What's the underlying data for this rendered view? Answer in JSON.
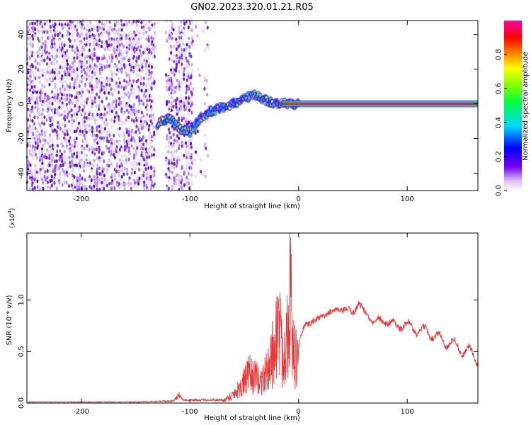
{
  "title": "GN02.2023.320.01.21.R05",
  "chart_data": [
    {
      "type": "heatmap",
      "xlabel": "Height of straight line (km)",
      "ylabel": "Frequency (Hz)",
      "xlim": [
        -250,
        165
      ],
      "ylim": [
        -50,
        48
      ],
      "x_ticks": [
        -200,
        -100,
        0,
        100
      ],
      "x_tick_labels": [
        "-200",
        "-100",
        "0",
        "100"
      ],
      "y_ticks": [
        -40,
        -20,
        0,
        20,
        40
      ],
      "y_tick_labels": [
        "-40",
        "-20",
        "0",
        "20",
        "40"
      ],
      "colorbar": {
        "label": "Normalized spectral amplitude",
        "range": [
          0,
          1
        ],
        "ticks": [
          0.0,
          0.2,
          0.4,
          0.6,
          0.8
        ],
        "tick_labels": [
          "0.0",
          "0.2",
          "0.4",
          "0.6",
          "0.8"
        ],
        "colormap": "rainbow (white → violet → blue → cyan → green → yellow → red → magenta)"
      },
      "features": [
        {
          "x_range": [
            -250,
            -132
          ],
          "freq_range": [
            -50,
            48
          ],
          "amplitude": 0.1,
          "pattern": "scattered noise"
        },
        {
          "x_range": [
            -122,
            -98
          ],
          "freq_range": [
            -50,
            48
          ],
          "amplitude": 0.1,
          "pattern": "scattered noise"
        },
        {
          "x_range": [
            -98,
            -83
          ],
          "freq_range": [
            -50,
            48
          ],
          "amplitude": 0.05,
          "pattern": "sparse noise"
        },
        {
          "signal_track": [
            [
              -130,
              -12
            ],
            [
              -120,
              -8
            ],
            [
              -110,
              -14
            ],
            [
              -100,
              -16
            ],
            [
              -90,
              -8
            ],
            [
              -80,
              -4
            ],
            [
              -70,
              -2
            ],
            [
              -60,
              0
            ],
            [
              -50,
              3
            ],
            [
              -40,
              5
            ],
            [
              -30,
              2
            ],
            [
              -20,
              0
            ],
            [
              0,
              0
            ],
            [
              165,
              0
            ]
          ]
        },
        {
          "x_range": [
            0,
            165
          ],
          "freq": 0,
          "amplitude": 1.0,
          "pattern": "strong carrier line"
        }
      ],
      "grid": false
    },
    {
      "type": "line",
      "xlabel": "Height of straight line (km)",
      "ylabel": "SNR (10 * v/v)",
      "y_multiplier_label": "(x10",
      "y_multiplier_exp": "4",
      "y_multiplier_close": ")",
      "xlim": [
        -250,
        165
      ],
      "ylim": [
        0,
        1.65
      ],
      "x_ticks": [
        -200,
        -100,
        0,
        100
      ],
      "x_tick_labels": [
        "-200",
        "-100",
        "0",
        "100"
      ],
      "y_ticks": [
        0,
        0.5,
        1.0
      ],
      "y_tick_labels": [
        "0.0",
        "0.5",
        "1.0"
      ],
      "color": "#ee3333",
      "series_envelope": [
        [
          -250,
          0.01
        ],
        [
          -150,
          0.01
        ],
        [
          -115,
          0.02
        ],
        [
          -110,
          0.08
        ],
        [
          -105,
          0.03
        ],
        [
          -70,
          0.03
        ],
        [
          -62,
          0.1
        ],
        [
          -55,
          0.2
        ],
        [
          -45,
          0.4
        ],
        [
          -35,
          0.3
        ],
        [
          -28,
          0.45
        ],
        [
          -22,
          0.8
        ],
        [
          -18,
          1.15
        ],
        [
          -15,
          0.6
        ],
        [
          -10,
          1.1
        ],
        [
          -8,
          1.62
        ],
        [
          -5,
          0.7
        ],
        [
          0,
          0.55
        ],
        [
          5,
          0.75
        ],
        [
          15,
          0.8
        ],
        [
          25,
          0.86
        ],
        [
          35,
          0.91
        ],
        [
          45,
          0.9
        ],
        [
          50,
          0.88
        ],
        [
          55,
          0.98
        ],
        [
          60,
          0.88
        ],
        [
          70,
          0.8
        ],
        [
          80,
          0.8
        ],
        [
          90,
          0.75
        ],
        [
          100,
          0.76
        ],
        [
          110,
          0.7
        ],
        [
          120,
          0.69
        ],
        [
          130,
          0.62
        ],
        [
          140,
          0.58
        ],
        [
          150,
          0.53
        ],
        [
          160,
          0.47
        ],
        [
          165,
          0.43
        ]
      ],
      "grid": false
    }
  ]
}
